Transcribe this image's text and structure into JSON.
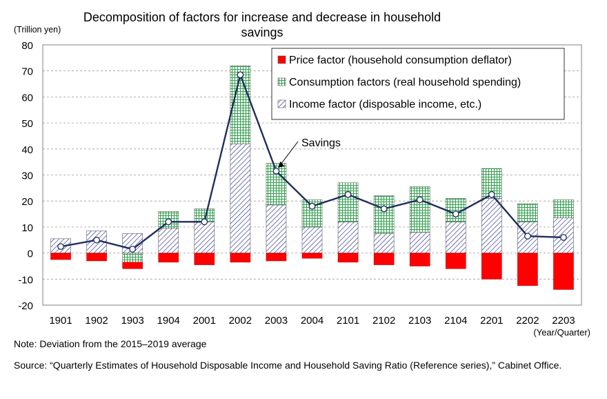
{
  "header": {
    "title": "Decomposition of factors for increase and decrease in household savings",
    "unit_label": "(Trillion yen)"
  },
  "footer": {
    "note": "Note: Deviation from the 2015–2019 average",
    "source": "Source: “Quarterly Estimates of Household Disposable Income and Household Saving Ratio (Reference series),” Cabinet Office."
  },
  "chart_data": {
    "type": "bar",
    "stacked": true,
    "title": "Decomposition of factors for increase and decrease in household savings",
    "ylabel": "(Trillion yen)",
    "xlabel": "(Year/Quarter)",
    "ylim": [
      -20,
      80
    ],
    "yticks": [
      80,
      70,
      60,
      50,
      40,
      30,
      20,
      10,
      0,
      -10,
      -20
    ],
    "grid": true,
    "legend_position": "top-right",
    "categories": [
      "1901",
      "1902",
      "1903",
      "1904",
      "2001",
      "2002",
      "2003",
      "2004",
      "2101",
      "2102",
      "2103",
      "2104",
      "2201",
      "2202",
      "2203"
    ],
    "series": [
      {
        "name": "Price factor (household consumption deflator)",
        "color": "#ff0000",
        "values": [
          -2.5,
          -3,
          -2.5,
          -3.5,
          -4.5,
          -3.5,
          -3,
          -2,
          -3.5,
          -4.5,
          -5,
          -6,
          -10,
          -12.5,
          -14
        ]
      },
      {
        "name": "Consumption factors (real household spending)",
        "color": "#2e9e4a",
        "values": [
          0,
          0,
          -3.5,
          6.5,
          5,
          30,
          16,
          10.5,
          15,
          14.5,
          17.5,
          9,
          11.5,
          7,
          7
        ]
      },
      {
        "name": "Income factor (disposable income, etc.)",
        "color": "#2a2a8c",
        "values": [
          5.5,
          8.5,
          7.5,
          9.5,
          12,
          42,
          18.5,
          10,
          12,
          7.5,
          8,
          12,
          21,
          12,
          13.5
        ]
      }
    ],
    "line": {
      "name": "Savings",
      "color": "#1f2d5c",
      "values": [
        2.5,
        5,
        1.5,
        12,
        12,
        68.5,
        31.5,
        18,
        22.5,
        17,
        20.5,
        15,
        22.5,
        6.5,
        6
      ]
    },
    "annotations": [
      "Savings"
    ]
  }
}
